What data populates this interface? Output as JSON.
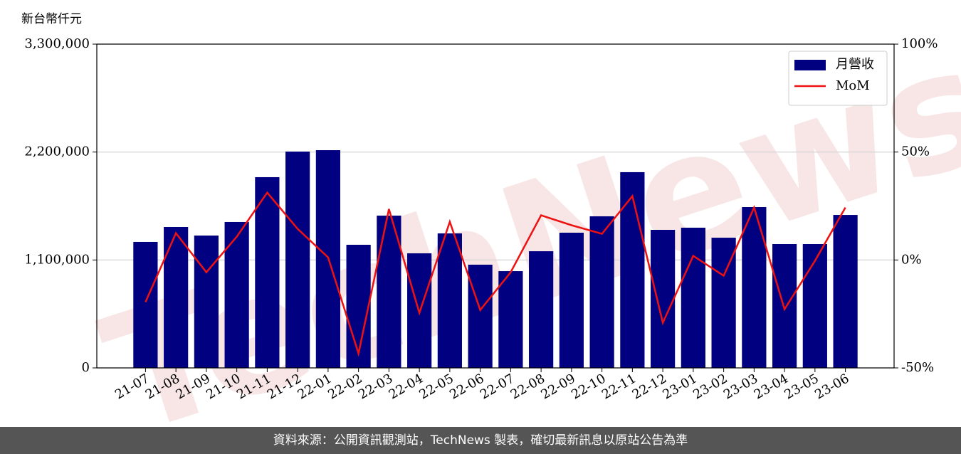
{
  "chart_data": {
    "type": "bar_line",
    "y_axis_label": "新台幣仟元",
    "watermark": "TechNews",
    "categories": [
      "21-07",
      "21-08",
      "21-09",
      "21-10",
      "21-11",
      "21-12",
      "22-01",
      "22-02",
      "22-03",
      "22-04",
      "22-05",
      "22-06",
      "22-07",
      "22-08",
      "22-09",
      "22-10",
      "22-11",
      "22-12",
      "23-01",
      "23-02",
      "23-03",
      "23-04",
      "23-05",
      "23-06"
    ],
    "series": [
      {
        "name": "月營收",
        "type": "bar",
        "color": "#000080",
        "values": [
          1284000,
          1436000,
          1349000,
          1487000,
          1944000,
          2205000,
          2219000,
          1255000,
          1552000,
          1168000,
          1371000,
          1052000,
          986000,
          1189000,
          1378000,
          1545000,
          1995000,
          1407000,
          1429000,
          1327000,
          1639000,
          1262000,
          1262000,
          1559000
        ]
      },
      {
        "name": "MoM",
        "type": "line",
        "axis": "y2",
        "color": "#ee1111",
        "values": [
          -19.5,
          12.4,
          -5.7,
          10.8,
          31.2,
          14.4,
          1.2,
          -43.3,
          23.6,
          -24.5,
          17.7,
          -23.2,
          -5.7,
          20.7,
          16.1,
          12.1,
          29.6,
          -29.1,
          1.9,
          -7.3,
          24.3,
          -22.8,
          -0.4,
          24.3
        ]
      }
    ],
    "ylim": [
      0,
      3300000
    ],
    "yticks": [
      0,
      {
        "value": 1100000,
        "label": "1,100,000"
      },
      {
        "value": 2200000,
        "label": "2,200,000"
      },
      {
        "value": 3300000,
        "label": "3,300,000"
      }
    ],
    "y2lim": [
      -50,
      100
    ],
    "y2ticks": [
      {
        "value": -50,
        "label": "-50%"
      },
      {
        "value": 0,
        "label": "0%"
      },
      {
        "value": 50,
        "label": "50%"
      },
      {
        "value": 100,
        "label": "100%"
      }
    ],
    "grid": true,
    "legend": "upper right"
  },
  "footer": "資料來源：公開資訊觀測站，TechNews 製表，確切最新訊息以原站公告為準"
}
